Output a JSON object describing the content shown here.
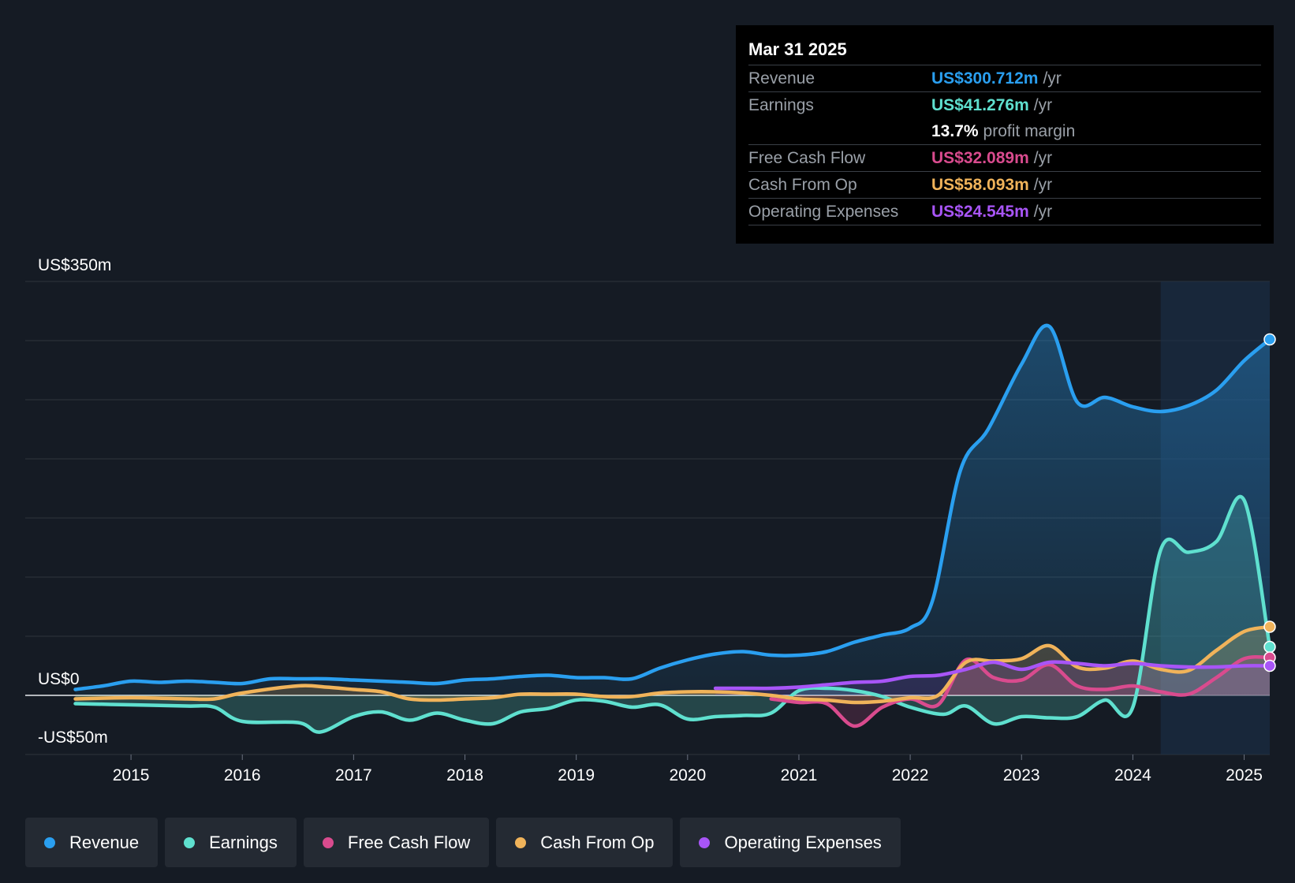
{
  "colors": {
    "revenue": "#2a9ff0",
    "earnings": "#5fe0cf",
    "fcf": "#d94b8e",
    "cfo": "#f0b35a",
    "opex": "#a855f7",
    "background": "#151b24",
    "grid": "#2e343c"
  },
  "tooltip": {
    "date": "Mar 31 2025",
    "revenue_label": "Revenue",
    "revenue_value": "US$300.712m",
    "earnings_label": "Earnings",
    "earnings_value": "US$41.276m",
    "margin_value": "13.7%",
    "margin_label": "profit margin",
    "fcf_label": "Free Cash Flow",
    "fcf_value": "US$32.089m",
    "cfo_label": "Cash From Op",
    "cfo_value": "US$58.093m",
    "opex_label": "Operating Expenses",
    "opex_value": "US$24.545m",
    "unit": "/yr"
  },
  "legend": [
    {
      "label": "Revenue",
      "color": "#2a9ff0"
    },
    {
      "label": "Earnings",
      "color": "#5fe0cf"
    },
    {
      "label": "Free Cash Flow",
      "color": "#d94b8e"
    },
    {
      "label": "Cash From Op",
      "color": "#f0b35a"
    },
    {
      "label": "Operating Expenses",
      "color": "#a855f7"
    }
  ],
  "chart_data": {
    "type": "area",
    "x_ticks": [
      2015,
      2016,
      2017,
      2018,
      2019,
      2020,
      2021,
      2022,
      2023,
      2024,
      2025
    ],
    "x_range": [
      2014.05,
      2025.23
    ],
    "y_range": [
      -50,
      350
    ],
    "y_gridlines": [
      -50,
      0,
      50,
      100,
      150,
      200,
      250,
      300,
      350
    ],
    "y_labels": [
      {
        "value": 350,
        "text": "US$350m"
      },
      {
        "value": 0,
        "text": "US$0"
      },
      {
        "value": -50,
        "text": "-US$50m"
      }
    ],
    "highlight_from": 2024.25,
    "series": [
      {
        "name": "Revenue",
        "key": "revenue",
        "fill": true,
        "points": [
          [
            2014.5,
            5
          ],
          [
            2014.75,
            8
          ],
          [
            2015,
            12
          ],
          [
            2015.25,
            11
          ],
          [
            2015.5,
            12
          ],
          [
            2015.75,
            11
          ],
          [
            2016,
            10
          ],
          [
            2016.25,
            14
          ],
          [
            2016.5,
            14
          ],
          [
            2016.75,
            14
          ],
          [
            2017,
            13
          ],
          [
            2017.25,
            12
          ],
          [
            2017.5,
            11
          ],
          [
            2017.75,
            10
          ],
          [
            2018,
            13
          ],
          [
            2018.25,
            14
          ],
          [
            2018.5,
            16
          ],
          [
            2018.75,
            17
          ],
          [
            2019,
            15
          ],
          [
            2019.25,
            15
          ],
          [
            2019.5,
            14
          ],
          [
            2019.75,
            23
          ],
          [
            2020,
            30
          ],
          [
            2020.25,
            35
          ],
          [
            2020.5,
            37
          ],
          [
            2020.75,
            34
          ],
          [
            2021,
            34
          ],
          [
            2021.25,
            37
          ],
          [
            2021.5,
            45
          ],
          [
            2021.75,
            51
          ],
          [
            2022,
            57
          ],
          [
            2022.2,
            80
          ],
          [
            2022.45,
            190
          ],
          [
            2022.7,
            225
          ],
          [
            2023,
            280
          ],
          [
            2023.25,
            312
          ],
          [
            2023.5,
            248
          ],
          [
            2023.75,
            252
          ],
          [
            2024,
            244
          ],
          [
            2024.25,
            240
          ],
          [
            2024.5,
            245
          ],
          [
            2024.75,
            258
          ],
          [
            2025,
            283
          ],
          [
            2025.23,
            301
          ]
        ]
      },
      {
        "name": "Earnings",
        "key": "earnings",
        "fill": true,
        "points": [
          [
            2014.5,
            -7
          ],
          [
            2015,
            -8
          ],
          [
            2015.5,
            -9
          ],
          [
            2015.75,
            -10
          ],
          [
            2016,
            -22
          ],
          [
            2016.5,
            -23
          ],
          [
            2016.7,
            -31
          ],
          [
            2017,
            -18
          ],
          [
            2017.25,
            -14
          ],
          [
            2017.5,
            -21
          ],
          [
            2017.75,
            -15
          ],
          [
            2018,
            -21
          ],
          [
            2018.25,
            -24
          ],
          [
            2018.5,
            -14
          ],
          [
            2018.75,
            -11
          ],
          [
            2019,
            -4
          ],
          [
            2019.25,
            -5
          ],
          [
            2019.5,
            -10
          ],
          [
            2019.75,
            -8
          ],
          [
            2020,
            -20
          ],
          [
            2020.25,
            -18
          ],
          [
            2020.5,
            -17
          ],
          [
            2020.75,
            -15
          ],
          [
            2021,
            4
          ],
          [
            2021.25,
            6
          ],
          [
            2021.5,
            4
          ],
          [
            2021.75,
            -1
          ],
          [
            2022,
            -10
          ],
          [
            2022.3,
            -16
          ],
          [
            2022.5,
            -9
          ],
          [
            2022.75,
            -24
          ],
          [
            2023,
            -18
          ],
          [
            2023.25,
            -19
          ],
          [
            2023.5,
            -18
          ],
          [
            2023.75,
            -4
          ],
          [
            2024,
            -10
          ],
          [
            2024.25,
            123
          ],
          [
            2024.5,
            121
          ],
          [
            2024.75,
            130
          ],
          [
            2025,
            165
          ],
          [
            2025.23,
            41
          ]
        ]
      },
      {
        "name": "Free Cash Flow",
        "key": "fcf",
        "fill": true,
        "points": [
          [
            2020.75,
            -3
          ],
          [
            2021,
            -6
          ],
          [
            2021.25,
            -7
          ],
          [
            2021.5,
            -26
          ],
          [
            2021.75,
            -10
          ],
          [
            2022,
            -3
          ],
          [
            2022.25,
            -8
          ],
          [
            2022.5,
            30
          ],
          [
            2022.75,
            15
          ],
          [
            2023,
            13
          ],
          [
            2023.25,
            26
          ],
          [
            2023.5,
            8
          ],
          [
            2023.75,
            5
          ],
          [
            2024,
            8
          ],
          [
            2024.25,
            3
          ],
          [
            2024.5,
            1
          ],
          [
            2024.75,
            15
          ],
          [
            2025,
            31
          ],
          [
            2025.23,
            32
          ]
        ]
      },
      {
        "name": "Cash From Op",
        "key": "cfo",
        "fill": true,
        "points": [
          [
            2014.5,
            -3
          ],
          [
            2015,
            -2
          ],
          [
            2015.5,
            -3
          ],
          [
            2015.75,
            -3
          ],
          [
            2016,
            2
          ],
          [
            2016.5,
            8
          ],
          [
            2016.75,
            7
          ],
          [
            2017,
            5
          ],
          [
            2017.25,
            3
          ],
          [
            2017.5,
            -3
          ],
          [
            2017.75,
            -4
          ],
          [
            2018,
            -3
          ],
          [
            2018.25,
            -2
          ],
          [
            2018.5,
            1
          ],
          [
            2018.75,
            1
          ],
          [
            2019,
            1
          ],
          [
            2019.25,
            -1
          ],
          [
            2019.5,
            -1
          ],
          [
            2019.75,
            2
          ],
          [
            2020,
            3
          ],
          [
            2020.25,
            3
          ],
          [
            2020.5,
            2
          ],
          [
            2020.75,
            0
          ],
          [
            2021,
            -3
          ],
          [
            2021.25,
            -4
          ],
          [
            2021.5,
            -6
          ],
          [
            2021.75,
            -5
          ],
          [
            2022,
            -2
          ],
          [
            2022.25,
            0
          ],
          [
            2022.5,
            28
          ],
          [
            2022.75,
            29
          ],
          [
            2023,
            31
          ],
          [
            2023.25,
            42
          ],
          [
            2023.5,
            24
          ],
          [
            2023.75,
            23
          ],
          [
            2024,
            29
          ],
          [
            2024.25,
            22
          ],
          [
            2024.5,
            21
          ],
          [
            2024.75,
            38
          ],
          [
            2025,
            54
          ],
          [
            2025.23,
            58
          ]
        ]
      },
      {
        "name": "Operating Expenses",
        "key": "opex",
        "fill": true,
        "points": [
          [
            2020.25,
            6
          ],
          [
            2020.5,
            6
          ],
          [
            2020.75,
            6
          ],
          [
            2021,
            7
          ],
          [
            2021.25,
            9
          ],
          [
            2021.5,
            11
          ],
          [
            2021.75,
            12
          ],
          [
            2022,
            16
          ],
          [
            2022.25,
            17
          ],
          [
            2022.5,
            22
          ],
          [
            2022.75,
            28
          ],
          [
            2023,
            22
          ],
          [
            2023.25,
            28
          ],
          [
            2023.5,
            27
          ],
          [
            2023.75,
            25
          ],
          [
            2024,
            27
          ],
          [
            2024.25,
            25
          ],
          [
            2024.5,
            24
          ],
          [
            2024.75,
            24
          ],
          [
            2025,
            25
          ],
          [
            2025.23,
            25
          ]
        ]
      }
    ]
  }
}
